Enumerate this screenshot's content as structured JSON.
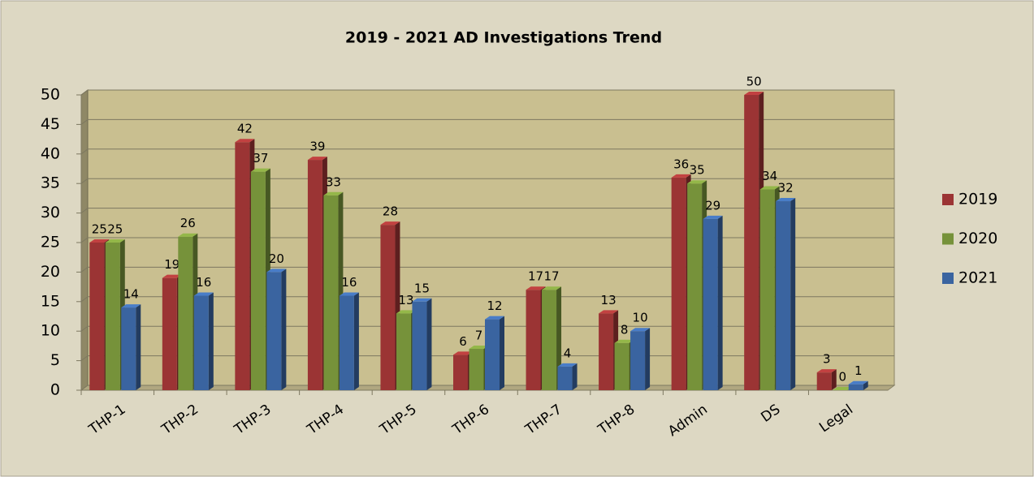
{
  "chart_data": {
    "type": "bar3d",
    "title": "2019 - 2021 AD Investigations Trend",
    "categories": [
      "THP-1",
      "THP-2",
      "THP-3",
      "THP-4",
      "THP-5",
      "THP-6",
      "THP-7",
      "THP-8",
      "Admin",
      "DS",
      "Legal"
    ],
    "series": [
      {
        "name": "2019",
        "color": "#9b3434",
        "values": [
          25,
          19,
          42,
          39,
          28,
          6,
          17,
          13,
          36,
          50,
          3
        ]
      },
      {
        "name": "2020",
        "color": "#76923a",
        "values": [
          25,
          26,
          37,
          33,
          13,
          7,
          17,
          8,
          35,
          34,
          0
        ]
      },
      {
        "name": "2021",
        "color": "#3a64a0",
        "values": [
          14,
          16,
          20,
          16,
          15,
          12,
          4,
          10,
          29,
          32,
          1
        ]
      }
    ],
    "ylim": [
      0,
      50
    ],
    "yticks": [
      0,
      5,
      10,
      15,
      20,
      25,
      30,
      35,
      40,
      45,
      50
    ],
    "grid": true,
    "legend": "right"
  }
}
